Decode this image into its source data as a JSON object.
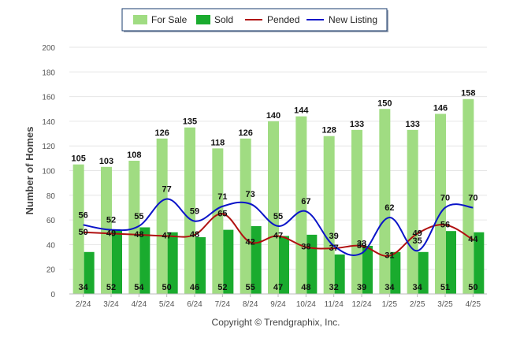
{
  "chart_data": {
    "type": "bar",
    "title": "",
    "xlabel": "",
    "ylabel": "Number of Homes",
    "ylim": [
      0,
      200
    ],
    "yticks": [
      0,
      20,
      40,
      60,
      80,
      100,
      120,
      140,
      160,
      180,
      200
    ],
    "grid": true,
    "legend_position": "top-center",
    "categories": [
      "2/24",
      "3/24",
      "4/24",
      "5/24",
      "6/24",
      "7/24",
      "8/24",
      "9/24",
      "10/24",
      "11/24",
      "12/24",
      "1/25",
      "2/25",
      "3/25",
      "4/25"
    ],
    "series": [
      {
        "name": "For Sale",
        "kind": "bar",
        "color": "#a0dc82",
        "values": [
          105,
          103,
          108,
          126,
          135,
          118,
          126,
          140,
          144,
          128,
          133,
          150,
          133,
          146,
          158
        ]
      },
      {
        "name": "Sold",
        "kind": "bar",
        "color": "#1aab2e",
        "values": [
          34,
          52,
          54,
          50,
          46,
          52,
          55,
          47,
          48,
          32,
          39,
          34,
          34,
          51,
          50
        ]
      },
      {
        "name": "Pended",
        "kind": "line",
        "color": "#b01010",
        "values": [
          50,
          49,
          48,
          47,
          48,
          65,
          42,
          47,
          38,
          37,
          39,
          31,
          49,
          56,
          44
        ]
      },
      {
        "name": "New Listing",
        "kind": "line",
        "color": "#0a14c8",
        "values": [
          56,
          52,
          55,
          77,
          59,
          71,
          73,
          55,
          67,
          39,
          33,
          62,
          35,
          70,
          70
        ]
      }
    ]
  },
  "footer": {
    "copyright": "Copyright © Trendgraphix, Inc."
  }
}
